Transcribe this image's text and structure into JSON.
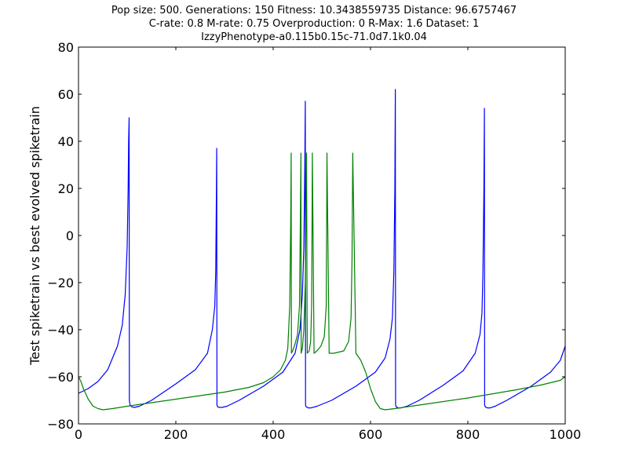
{
  "chart_data": {
    "type": "line",
    "title_lines": [
      "Pop size: 500. Generations: 150 Fitness: 10.3438559735 Distance: 96.6757467",
      "C-rate: 0.8 M-rate: 0.75 Overproduction: 0 R-Max: 1.6 Dataset: 1",
      "IzzyPhenotype-a0.115b0.15c-71.0d7.1k0.04"
    ],
    "xlabel": "",
    "ylabel": "Test spiketrain vs best evolved spiketrain",
    "xlim": [
      0,
      1000
    ],
    "ylim": [
      -80,
      80
    ],
    "xticks": [
      0,
      200,
      400,
      600,
      800,
      1000
    ],
    "yticks": [
      -80,
      -60,
      -40,
      -20,
      0,
      20,
      40,
      60,
      80
    ],
    "xtick_labels": [
      "0",
      "200",
      "400",
      "600",
      "800",
      "1000"
    ],
    "ytick_labels": [
      "−80",
      "−60",
      "−40",
      "−20",
      "0",
      "20",
      "40",
      "60",
      "80"
    ],
    "grid": false,
    "series": [
      {
        "color": "#0000ff",
        "x": [
          0,
          20,
          40,
          60,
          80,
          90,
          96,
          100,
          102,
          103,
          104,
          104.5,
          106,
          110,
          115,
          125,
          150,
          200,
          240,
          265,
          275,
          280,
          282,
          283,
          284,
          284.5,
          286,
          290,
          295,
          305,
          330,
          380,
          420,
          445,
          455,
          460,
          463,
          465,
          466,
          466.5,
          468,
          472,
          478,
          490,
          520,
          570,
          610,
          630,
          640,
          645,
          648,
          650,
          651,
          651.5,
          653,
          657,
          663,
          675,
          700,
          750,
          790,
          815,
          825,
          829,
          831,
          833,
          834,
          834.5,
          836,
          840,
          846,
          856,
          880,
          930,
          970,
          990,
          1000
        ],
        "y": [
          -67,
          -65,
          -62,
          -57,
          -47,
          -38,
          -25,
          -5,
          20,
          40,
          50,
          -70,
          -72,
          -72.8,
          -73,
          -72.5,
          -70,
          -63,
          -57,
          -50,
          -40,
          -30,
          -15,
          10,
          37,
          -72,
          -72.8,
          -73,
          -73,
          -72.5,
          -70,
          -64,
          -58,
          -50,
          -40,
          -25,
          -5,
          30,
          57,
          -72,
          -72.8,
          -73.2,
          -73.2,
          -72.5,
          -70,
          -64,
          -58,
          -52,
          -44,
          -35,
          -15,
          20,
          62,
          -72,
          -72.8,
          -73.2,
          -73.2,
          -72.5,
          -70,
          -63.5,
          -57.5,
          -50,
          -42,
          -33,
          -15,
          20,
          54,
          -72,
          -72.8,
          -73.2,
          -73.2,
          -72.5,
          -70,
          -64,
          -58,
          -53,
          -47
        ]
      },
      {
        "color": "#008000",
        "x": [
          0,
          5,
          10,
          20,
          30,
          40,
          50,
          70,
          100,
          150,
          200,
          250,
          300,
          350,
          380,
          400,
          415,
          425,
          430,
          434,
          436,
          437,
          437.5,
          440,
          445,
          450,
          454,
          456,
          457,
          457.5,
          460,
          463,
          466,
          468,
          468.5,
          470,
          474,
          477,
          479,
          480,
          480.5,
          484,
          490,
          498,
          505,
          509,
          510,
          510.5,
          515,
          525,
          535,
          545,
          555,
          560,
          562,
          563,
          563.5,
          570,
          580,
          590,
          600,
          610,
          620,
          630,
          650,
          700,
          800,
          900,
          950,
          990,
          1000
        ],
        "y": [
          -60,
          -62,
          -65,
          -69.5,
          -72.5,
          -73.5,
          -74,
          -73.5,
          -72.5,
          -71,
          -69.5,
          -68,
          -66.5,
          -64.5,
          -62.5,
          -60,
          -57,
          -53,
          -48,
          -30,
          5,
          35,
          -50,
          -49,
          -46,
          -42,
          -30,
          10,
          35,
          -50,
          -48,
          -40,
          -20,
          20,
          35,
          -50,
          -49,
          -45,
          -30,
          10,
          35,
          -50,
          -49,
          -47,
          -43,
          -30,
          10,
          35,
          -50,
          -50,
          -49.5,
          -49,
          -45,
          -35,
          -10,
          20,
          35,
          -50,
          -53,
          -58,
          -65,
          -70.5,
          -73.5,
          -74,
          -73.5,
          -72,
          -69,
          -65.5,
          -63.5,
          -61.5,
          -60
        ]
      }
    ]
  }
}
